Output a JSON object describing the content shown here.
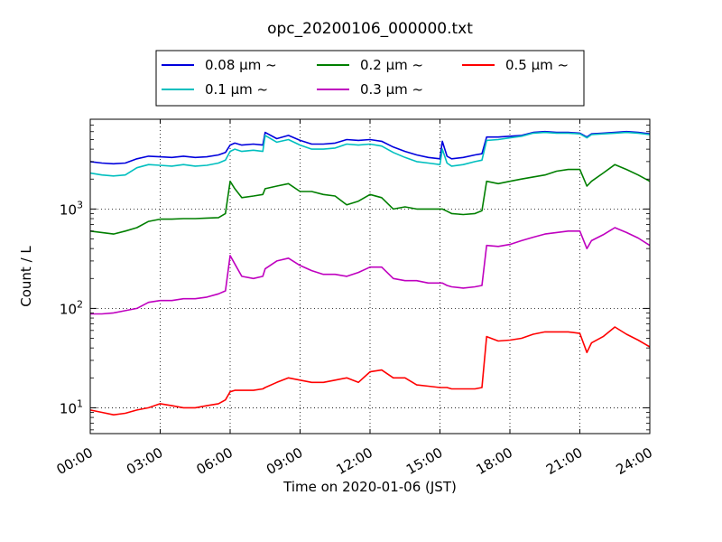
{
  "chart_data": {
    "type": "line",
    "title": "opc_20200106_000000.txt",
    "xlabel": "Time on 2020-01-06 (JST)",
    "ylabel": "Count / L",
    "xlim": [
      0,
      24
    ],
    "ylim": [
      5.5,
      8000
    ],
    "yscale": "log",
    "x_ticks": [
      "00:00",
      "03:00",
      "06:00",
      "09:00",
      "12:00",
      "15:00",
      "18:00",
      "21:00",
      "24:00"
    ],
    "x_tick_values": [
      0,
      3,
      6,
      9,
      12,
      15,
      18,
      21,
      24
    ],
    "y_ticks": [
      {
        "value": 10,
        "base": "10",
        "exp": "1"
      },
      {
        "value": 100,
        "base": "10",
        "exp": "2"
      },
      {
        "value": 1000,
        "base": "10",
        "exp": "3"
      }
    ],
    "grid": true,
    "legend_placement": "top-center",
    "x": [
      0,
      0.5,
      1,
      1.5,
      2,
      2.5,
      3,
      3.5,
      4,
      4.5,
      5,
      5.5,
      5.8,
      6,
      6.2,
      6.5,
      7,
      7.4,
      7.5,
      8,
      8.5,
      9,
      9.5,
      10,
      10.5,
      11,
      11.5,
      12,
      12.5,
      13,
      13.5,
      14,
      14.5,
      15,
      15.1,
      15.3,
      15.5,
      16,
      16.5,
      16.8,
      17,
      17.5,
      18,
      18.5,
      19,
      19.5,
      20,
      20.5,
      21,
      21.3,
      21.5,
      22,
      22.5,
      23,
      23.5,
      24
    ],
    "series": [
      {
        "name": "0.08 μm ~",
        "color": "#0000dd",
        "values": [
          3000,
          2900,
          2850,
          2900,
          3200,
          3400,
          3350,
          3300,
          3400,
          3300,
          3350,
          3500,
          3700,
          4400,
          4600,
          4400,
          4500,
          4400,
          5900,
          5100,
          5500,
          4900,
          4500,
          4500,
          4600,
          5000,
          4900,
          5000,
          4800,
          4200,
          3800,
          3500,
          3300,
          3200,
          4800,
          3400,
          3200,
          3300,
          3500,
          3600,
          5300,
          5300,
          5400,
          5500,
          5900,
          6000,
          5900,
          5900,
          5800,
          5300,
          5700,
          5800,
          5900,
          6000,
          5900,
          5700
        ]
      },
      {
        "name": "0.1 μm ~",
        "color": "#00bfbf",
        "values": [
          2300,
          2200,
          2150,
          2200,
          2600,
          2800,
          2750,
          2700,
          2800,
          2700,
          2750,
          2900,
          3100,
          3800,
          4000,
          3800,
          3900,
          3800,
          5500,
          4700,
          5000,
          4400,
          4000,
          4000,
          4100,
          4500,
          4400,
          4500,
          4300,
          3700,
          3300,
          3000,
          2900,
          2800,
          4000,
          2900,
          2700,
          2800,
          3000,
          3100,
          4900,
          5000,
          5200,
          5400,
          5800,
          5900,
          5800,
          5800,
          5700,
          5200,
          5600,
          5700,
          5800,
          5900,
          5800,
          5600
        ]
      },
      {
        "name": "0.2 μm ~",
        "color": "#007f00",
        "values": [
          600,
          580,
          560,
          600,
          650,
          750,
          790,
          790,
          800,
          800,
          810,
          820,
          900,
          1900,
          1600,
          1300,
          1350,
          1400,
          1600,
          1700,
          1800,
          1500,
          1500,
          1400,
          1350,
          1100,
          1200,
          1400,
          1300,
          1000,
          1050,
          1000,
          1000,
          1000,
          1000,
          950,
          900,
          880,
          900,
          960,
          1900,
          1800,
          1900,
          2000,
          2100,
          2200,
          2400,
          2500,
          2500,
          1700,
          1900,
          2300,
          2800,
          2500,
          2200,
          1900
        ]
      },
      {
        "name": "0.3 μm ~",
        "color": "#bf00bf",
        "values": [
          88,
          88,
          90,
          95,
          100,
          115,
          120,
          120,
          125,
          125,
          130,
          140,
          150,
          340,
          280,
          210,
          200,
          210,
          250,
          300,
          320,
          270,
          240,
          220,
          220,
          210,
          230,
          260,
          260,
          200,
          190,
          190,
          180,
          180,
          180,
          170,
          165,
          160,
          165,
          170,
          430,
          420,
          440,
          480,
          520,
          560,
          580,
          600,
          600,
          400,
          480,
          550,
          650,
          580,
          510,
          430
        ]
      },
      {
        "name": "0.5 μm ~",
        "color": "#ff0000",
        "values": [
          9.5,
          9,
          8.5,
          8.8,
          9.5,
          10,
          11,
          10.5,
          10,
          10,
          10.5,
          11,
          12,
          14.5,
          15,
          15,
          15,
          15.5,
          16,
          18,
          20,
          19,
          18,
          18,
          19,
          20,
          18,
          23,
          24,
          20,
          20,
          17,
          16.5,
          16,
          16,
          16,
          15.5,
          15.5,
          15.5,
          16,
          52,
          47,
          48,
          50,
          55,
          58,
          58,
          58,
          56,
          36,
          45,
          52,
          65,
          55,
          48,
          41
        ]
      }
    ]
  }
}
